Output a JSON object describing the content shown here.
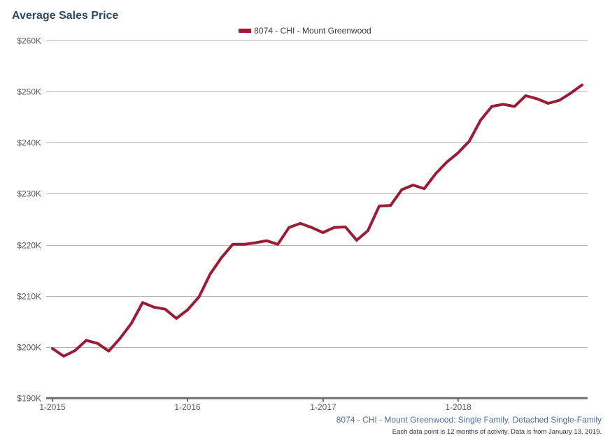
{
  "chart_data": {
    "type": "line",
    "title": "Average Sales Price",
    "xlabel": "",
    "ylabel": "",
    "ylim": [
      190000,
      260000
    ],
    "yticks": [
      190000,
      200000,
      210000,
      220000,
      230000,
      240000,
      250000,
      260000
    ],
    "ytick_labels": [
      "$190K",
      "$200K",
      "$210K",
      "$220K",
      "$230K",
      "$240K",
      "$250K",
      "$260K"
    ],
    "xticks": [
      0,
      12,
      24,
      36
    ],
    "xtick_labels": [
      "1-2015",
      "1-2016",
      "1-2017",
      "1-2018"
    ],
    "x_range": [
      0,
      47
    ],
    "grid": true,
    "legend_position": "top-center",
    "color": "#9b1c36",
    "series": [
      {
        "name": "8074 - CHI - Mount Greenwood",
        "values": [
          199700,
          198200,
          199300,
          201300,
          200700,
          199200,
          201700,
          204600,
          208700,
          207800,
          207400,
          205600,
          207300,
          209800,
          214300,
          217500,
          220100,
          220100,
          220400,
          220800,
          220100,
          223400,
          224200,
          223400,
          222400,
          223400,
          223500,
          220900,
          222800,
          227600,
          227700,
          230800,
          231700,
          231000,
          233900,
          236200,
          238000,
          240300,
          244400,
          247100,
          247500,
          247100,
          249200,
          248600,
          247700,
          248300,
          249700,
          251300
        ]
      }
    ],
    "subtitle": "8074 - CHI - Mount Greenwood: Single Family, Detached Single-Family",
    "note": "Each data point is 12 months of activity. Data is from January 13, 2019."
  }
}
